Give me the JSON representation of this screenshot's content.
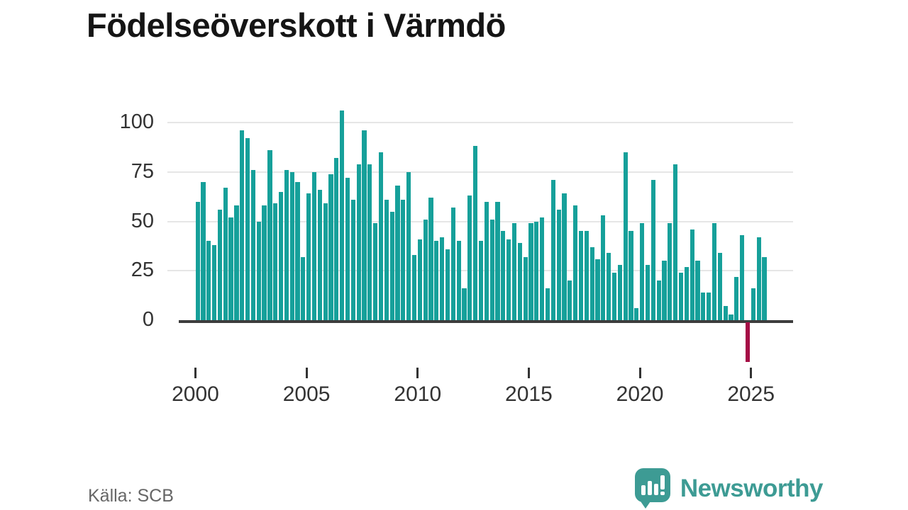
{
  "title": "Födelseöverskott i Värmdö",
  "source_label": "Källa: SCB",
  "brand": {
    "name": "Newsworthy"
  },
  "colors": {
    "bar": "#16a09a",
    "negative_bar": "#a50d45",
    "axis": "#3d3d3d",
    "grid": "#e6e6e6",
    "tick_text": "#333333",
    "title_text": "#151515",
    "source_text": "#666666",
    "brand_teal": "#3d9b94"
  },
  "chart_data": {
    "type": "bar",
    "title": "Födelseöverskott i Värmdö",
    "frequency": "quarterly",
    "start_year": 2000,
    "start_quarter": 1,
    "end_year": 2025,
    "end_quarter": 3,
    "xlabel": "",
    "ylabel": "",
    "grid": true,
    "legend": false,
    "ylim": [
      -25,
      112
    ],
    "y_ticks": [
      0,
      25,
      50,
      75,
      100
    ],
    "x_tick_years": [
      2000,
      2005,
      2010,
      2015,
      2020,
      2025
    ],
    "values": [
      60,
      70,
      40,
      38,
      56,
      67,
      52,
      58,
      96,
      92,
      76,
      50,
      58,
      86,
      59,
      65,
      76,
      75,
      70,
      32,
      64,
      75,
      66,
      59,
      74,
      82,
      106,
      72,
      61,
      79,
      96,
      79,
      49,
      85,
      61,
      55,
      68,
      61,
      75,
      33,
      41,
      51,
      62,
      40,
      42,
      36,
      57,
      40,
      16,
      63,
      88,
      40,
      60,
      51,
      60,
      45,
      41,
      49,
      39,
      32,
      49,
      50,
      52,
      16,
      71,
      56,
      64,
      20,
      58,
      45,
      45,
      37,
      31,
      53,
      34,
      24,
      28,
      85,
      45,
      6,
      49,
      28,
      71,
      20,
      30,
      49,
      79,
      24,
      27,
      46,
      30,
      14,
      14,
      49,
      34,
      7,
      3,
      22,
      43,
      -20,
      16,
      42,
      32
    ]
  }
}
